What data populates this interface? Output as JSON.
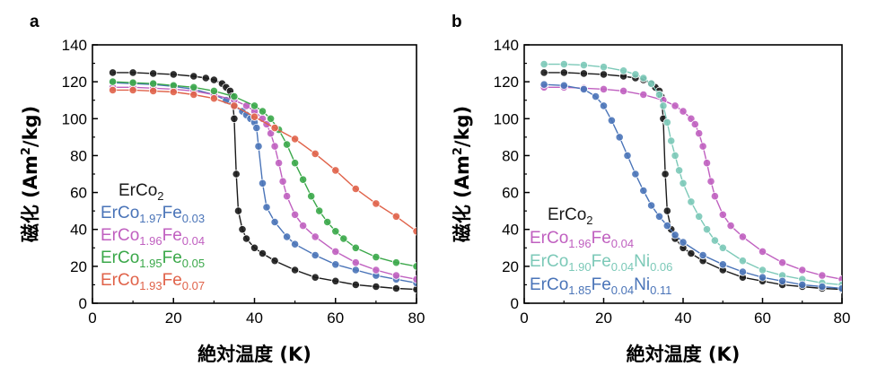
{
  "chart_data": [
    {
      "type": "scatter",
      "panel_label": "a",
      "xlabel": "絶対温度 (K)",
      "ylabel": "磁化 (Am²/kg)",
      "ylabel_main": "磁化 (Am",
      "ylabel_sup": "2",
      "ylabel_tail": "/kg)",
      "xlim": [
        0,
        80
      ],
      "ylim": [
        0,
        140
      ],
      "xticks": [
        "0",
        "20",
        "40",
        "60",
        "80"
      ],
      "yticks": [
        "0",
        "20",
        "40",
        "60",
        "80",
        "100",
        "120",
        "140"
      ],
      "grid": false,
      "legend_position": "lower-left",
      "series": [
        {
          "name": "ErCo2",
          "color": "#1a1a1a",
          "parts": [
            {
              "t": "ErCo"
            },
            {
              "t": "2",
              "sub": true
            }
          ],
          "x": [
            5,
            10,
            15,
            20,
            25,
            28,
            30,
            32,
            33,
            34,
            34.5,
            35,
            35.5,
            36,
            37,
            38,
            40,
            42,
            45,
            50,
            55,
            60,
            65,
            70,
            75,
            80
          ],
          "y": [
            125,
            125,
            124.5,
            124,
            123,
            122,
            121,
            119,
            117,
            115,
            112,
            100,
            70,
            50,
            40,
            35,
            30,
            27,
            23,
            18,
            14,
            12,
            10,
            9,
            8,
            7.5
          ]
        },
        {
          "name": "ErCo1.97Fe0.03",
          "color": "#4a74b8",
          "parts": [
            {
              "t": "ErCo"
            },
            {
              "t": "1.97",
              "sub": true
            },
            {
              "t": "Fe"
            },
            {
              "t": "0.03",
              "sub": true
            }
          ],
          "x": [
            5,
            10,
            15,
            20,
            25,
            30,
            33,
            35,
            37,
            38,
            39,
            40,
            40.5,
            41,
            42,
            43,
            45,
            48,
            50,
            55,
            60,
            65,
            70,
            75,
            80
          ],
          "y": [
            119.5,
            119,
            118.5,
            117.5,
            116,
            113,
            110,
            107,
            104,
            102,
            100,
            98,
            95,
            85,
            65,
            52,
            44,
            36,
            32,
            26,
            21,
            18,
            15,
            13,
            11
          ]
        },
        {
          "name": "ErCo1.96Fe0.04",
          "color": "#c060c0",
          "parts": [
            {
              "t": "ErCo"
            },
            {
              "t": "1.96",
              "sub": true
            },
            {
              "t": "Fe"
            },
            {
              "t": "0.04",
              "sub": true
            }
          ],
          "x": [
            5,
            10,
            15,
            20,
            25,
            30,
            35,
            38,
            40,
            42,
            43,
            44,
            45,
            46,
            47,
            48,
            50,
            52,
            55,
            60,
            65,
            70,
            75,
            80
          ],
          "y": [
            117,
            117,
            116.5,
            116,
            115,
            113,
            110,
            107,
            104,
            100,
            97,
            92,
            85,
            76,
            66,
            58,
            48,
            42,
            36,
            28,
            22,
            18,
            15,
            13
          ]
        },
        {
          "name": "ErCo1.95Fe0.05",
          "color": "#3ba84a",
          "parts": [
            {
              "t": "ErCo"
            },
            {
              "t": "1.95",
              "sub": true
            },
            {
              "t": "Fe"
            },
            {
              "t": "0.05",
              "sub": true
            }
          ],
          "x": [
            5,
            10,
            15,
            20,
            25,
            30,
            35,
            40,
            42,
            44,
            46,
            48,
            50,
            52,
            54,
            56,
            58,
            60,
            62,
            65,
            70,
            75,
            80
          ],
          "y": [
            120,
            119.5,
            119,
            118,
            117,
            115,
            112,
            107,
            104,
            100,
            94,
            86,
            76,
            67,
            58,
            50,
            44,
            39,
            35,
            30,
            25,
            22,
            20
          ]
        },
        {
          "name": "ErCo1.93Fe0.07",
          "color": "#e0634a",
          "parts": [
            {
              "t": "ErCo"
            },
            {
              "t": "1.93",
              "sub": true
            },
            {
              "t": "Fe"
            },
            {
              "t": "0.07",
              "sub": true
            }
          ],
          "x": [
            5,
            10,
            15,
            20,
            25,
            30,
            35,
            40,
            45,
            50,
            55,
            60,
            65,
            70,
            75,
            80
          ],
          "y": [
            115.5,
            115.5,
            115,
            114.5,
            113,
            111,
            107,
            101,
            95,
            89,
            81,
            72,
            62,
            54,
            47,
            39
          ]
        }
      ]
    },
    {
      "type": "scatter",
      "panel_label": "b",
      "xlabel": "絶対温度 (K)",
      "ylabel": "磁化 (Am²/kg)",
      "ylabel_main": "磁化 (Am",
      "ylabel_sup": "2",
      "ylabel_tail": "/kg)",
      "xlim": [
        0,
        80
      ],
      "ylim": [
        0,
        140
      ],
      "xticks": [
        "0",
        "20",
        "40",
        "60",
        "80"
      ],
      "yticks": [
        "0",
        "20",
        "40",
        "60",
        "80",
        "100",
        "120",
        "140"
      ],
      "grid": false,
      "legend_position": "lower-left",
      "series": [
        {
          "name": "ErCo2",
          "color": "#1a1a1a",
          "parts": [
            {
              "t": "ErCo"
            },
            {
              "t": "2",
              "sub": true
            }
          ],
          "x": [
            5,
            10,
            15,
            20,
            25,
            28,
            30,
            32,
            33,
            34,
            34.5,
            35,
            35.5,
            36,
            37,
            38,
            40,
            42,
            45,
            50,
            55,
            60,
            65,
            70,
            75,
            80
          ],
          "y": [
            125,
            125,
            124.5,
            124,
            123,
            122,
            121,
            119,
            117,
            115,
            112,
            100,
            70,
            50,
            40,
            35,
            30,
            27,
            23,
            18,
            14,
            12,
            10,
            9,
            8,
            7.5
          ]
        },
        {
          "name": "ErCo1.96Fe0.04",
          "color": "#c060c0",
          "parts": [
            {
              "t": "ErCo"
            },
            {
              "t": "1.96",
              "sub": true
            },
            {
              "t": "Fe"
            },
            {
              "t": "0.04",
              "sub": true
            }
          ],
          "x": [
            5,
            10,
            15,
            20,
            25,
            30,
            35,
            38,
            40,
            42,
            43,
            44,
            45,
            46,
            47,
            48,
            50,
            52,
            55,
            60,
            65,
            70,
            75,
            80
          ],
          "y": [
            117,
            117,
            116.5,
            116,
            115,
            113,
            110,
            107,
            104,
            100,
            97,
            92,
            85,
            76,
            66,
            58,
            48,
            42,
            36,
            28,
            22,
            18,
            15,
            13
          ]
        },
        {
          "name": "ErCo1.90Fe0.04Ni0.06",
          "color": "#7cc9b8",
          "parts": [
            {
              "t": "ErCo"
            },
            {
              "t": "1.90",
              "sub": true
            },
            {
              "t": "Fe"
            },
            {
              "t": "0.04",
              "sub": true
            },
            {
              "t": "Ni"
            },
            {
              "t": "0.06",
              "sub": true
            }
          ],
          "x": [
            5,
            10,
            15,
            20,
            25,
            28,
            30,
            32,
            34,
            35,
            36,
            37,
            38,
            39,
            40,
            42,
            44,
            46,
            48,
            50,
            55,
            60,
            65,
            70,
            75,
            80
          ],
          "y": [
            129.5,
            129.5,
            129,
            128,
            126,
            124,
            122,
            119,
            113,
            107,
            98,
            88,
            80,
            72,
            65,
            55,
            47,
            40,
            34,
            30,
            23,
            18,
            15,
            13,
            11,
            10
          ]
        },
        {
          "name": "ErCo1.85Fe0.04Ni0.11",
          "color": "#4a74b8",
          "parts": [
            {
              "t": "ErCo"
            },
            {
              "t": "1.85",
              "sub": true
            },
            {
              "t": "Fe"
            },
            {
              "t": "0.04",
              "sub": true
            },
            {
              "t": "Ni"
            },
            {
              "t": "0.11",
              "sub": true
            }
          ],
          "x": [
            5,
            10,
            15,
            18,
            20,
            22,
            24,
            26,
            28,
            30,
            32,
            34,
            36,
            38,
            40,
            45,
            50,
            55,
            60,
            65,
            70,
            75,
            80
          ],
          "y": [
            118.5,
            118,
            116,
            112,
            107,
            99,
            90,
            80,
            70,
            61,
            53,
            47,
            42,
            37,
            33,
            26,
            21,
            17,
            14,
            12,
            10,
            9,
            8
          ]
        }
      ]
    }
  ]
}
